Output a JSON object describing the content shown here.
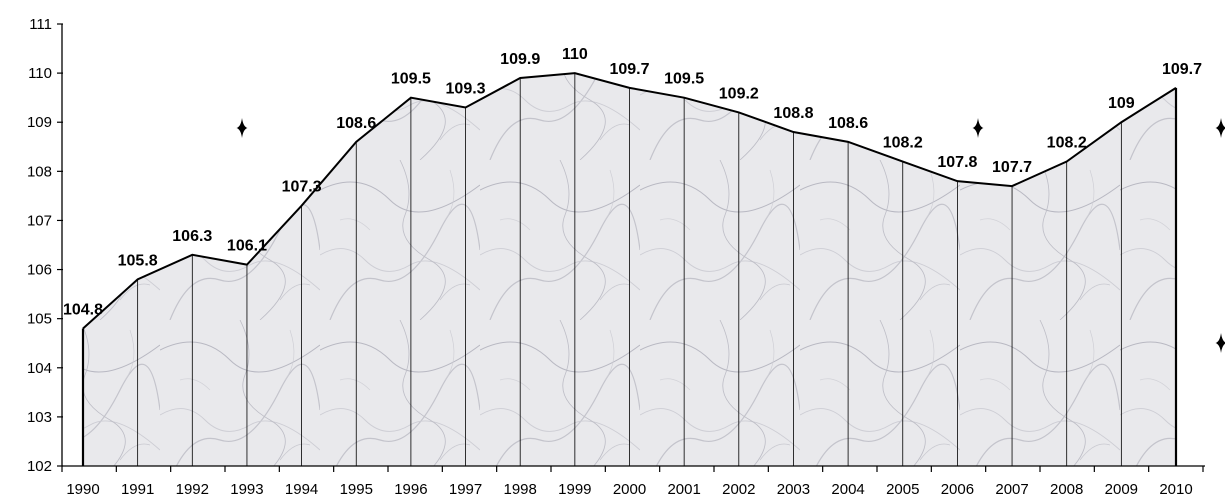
{
  "chart_data": {
    "type": "area",
    "title": "",
    "xlabel": "",
    "ylabel": "",
    "x": [
      "1990",
      "1991",
      "1992",
      "1993",
      "1994",
      "1995",
      "1996",
      "1997",
      "1998",
      "1999",
      "2000",
      "2001",
      "2002",
      "2003",
      "2004",
      "2005",
      "2006",
      "2007",
      "2008",
      "2009",
      "2010"
    ],
    "values": [
      104.8,
      105.8,
      106.3,
      106.1,
      107.3,
      108.6,
      109.5,
      109.3,
      109.9,
      110,
      109.7,
      109.5,
      109.2,
      108.8,
      108.6,
      108.2,
      107.8,
      107.7,
      108.2,
      109,
      109.7
    ],
    "data_labels": [
      "104.8",
      "105.8",
      "106.3",
      "106.1",
      "107.3",
      "108.6",
      "109.5",
      "109.3",
      "109.9",
      "110",
      "109.7",
      "109.5",
      "109.2",
      "108.8",
      "108.6",
      "108.2",
      "107.8",
      "107.7",
      "108.2",
      "109",
      "109.7"
    ],
    "ylim": [
      102,
      111
    ],
    "yticks": [
      102,
      103,
      104,
      105,
      106,
      107,
      108,
      109,
      110,
      111
    ],
    "ytick_labels": [
      "102",
      "103",
      "104",
      "105",
      "106",
      "107",
      "108",
      "109",
      "110",
      "111"
    ],
    "grid": false,
    "legend": "none",
    "fill_texture": "gray-marble",
    "line_color": "#000000"
  }
}
